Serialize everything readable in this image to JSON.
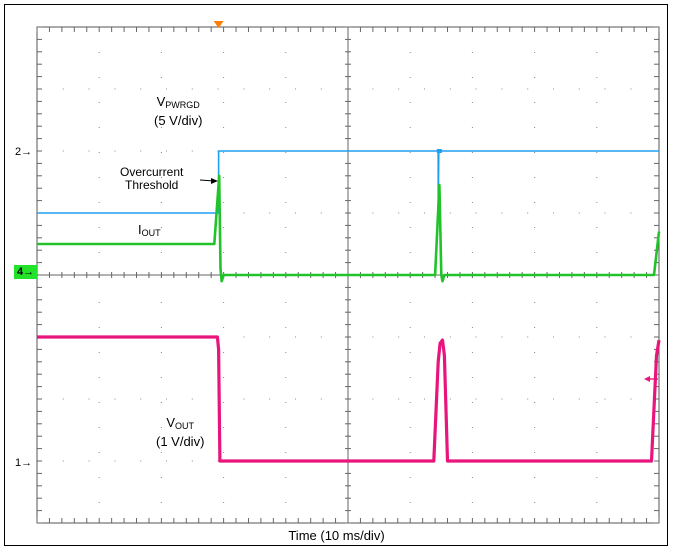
{
  "chart_data": {
    "type": "line",
    "xlabel": "Time (10 ms/div)",
    "x_divisions": 10,
    "y_divisions": 8,
    "grid": true,
    "x_unit": "ms",
    "x_per_div": 10,
    "series": [
      {
        "name": "VPWRGD",
        "label_main": "V",
        "label_sub": "PWRGD",
        "scale": "(5 V/div)",
        "marker": "2",
        "color": "#1f9ff0",
        "level_div": 2.0,
        "points": [
          [
            0,
            3.0
          ],
          [
            29.2,
            3.0
          ],
          [
            29.2,
            2.0
          ],
          [
            64.5,
            2.0
          ],
          [
            64.5,
            3.0
          ],
          [
            64.6,
            2.0
          ],
          [
            100,
            2.0
          ]
        ]
      },
      {
        "name": "IOUT",
        "label_main": "I",
        "label_sub": "OUT",
        "marker": "4",
        "color": "#22c32a",
        "level_div": 4.0,
        "points": [
          [
            0,
            3.5
          ],
          [
            28.5,
            3.5
          ],
          [
            29.3,
            2.4
          ],
          [
            29.5,
            3.9
          ],
          [
            29.7,
            4.1
          ],
          [
            30,
            4.0
          ],
          [
            64,
            4.0
          ],
          [
            64.7,
            2.55
          ],
          [
            65,
            4.0
          ],
          [
            65.2,
            4.1
          ],
          [
            65.5,
            4.0
          ],
          [
            99.2,
            4.0
          ],
          [
            100,
            3.3
          ]
        ]
      },
      {
        "name": "VOUT",
        "label_main": "V",
        "label_sub": "OUT",
        "scale": "(1 V/div)",
        "marker": "1",
        "color": "#e8157d",
        "level_div": 7.0,
        "points": [
          [
            0,
            5.0
          ],
          [
            29.0,
            5.0
          ],
          [
            29.2,
            5.2
          ],
          [
            29.4,
            7.0
          ],
          [
            63.8,
            7.0
          ],
          [
            64.5,
            5.4
          ],
          [
            64.8,
            5.1
          ],
          [
            65.2,
            5.05
          ],
          [
            65.5,
            5.3
          ],
          [
            66,
            7.0
          ],
          [
            98.8,
            7.0
          ],
          [
            99.6,
            5.3
          ],
          [
            100,
            5.05
          ]
        ]
      }
    ],
    "annotations": [
      {
        "text_line1": "Overcurrent",
        "text_line2": "Threshold"
      }
    ],
    "trigger_color": "#ff7f00"
  }
}
